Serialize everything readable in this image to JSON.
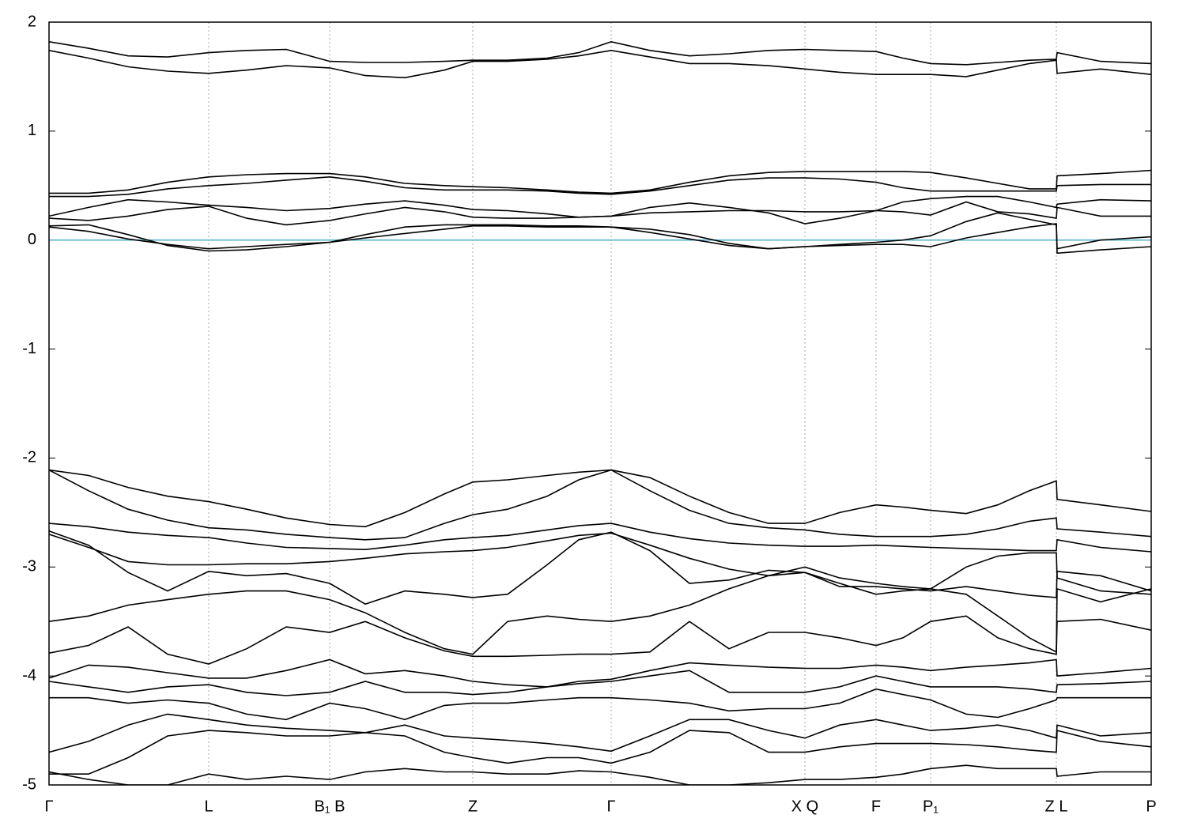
{
  "chart_data": {
    "type": "line",
    "x": [
      0,
      0.5,
      1.0,
      1.5,
      2.02,
      2.5,
      3.0,
      3.55,
      4.0,
      4.5,
      5.0,
      5.36,
      5.8,
      6.3,
      6.7,
      7.11,
      7.6,
      8.1,
      8.6,
      9.1,
      9.56,
      10.0,
      10.46,
      10.8,
      11.15,
      11.6,
      12.0,
      12.4,
      12.74,
      12.75,
      13.3,
      13.94
    ],
    "xlim": [
      0,
      13.94
    ],
    "xticks": [
      {
        "value": 0,
        "label": "Γ"
      },
      {
        "value": 2.02,
        "label": "L"
      },
      {
        "value": 3.55,
        "label": "B₁ B"
      },
      {
        "value": 5.36,
        "label": "Z"
      },
      {
        "value": 7.11,
        "label": "Γ"
      },
      {
        "value": 9.56,
        "label": "X Q"
      },
      {
        "value": 10.46,
        "label": "F"
      },
      {
        "value": 11.15,
        "label": "P₁"
      },
      {
        "value": 12.74,
        "label": "Z L"
      },
      {
        "value": 13.94,
        "label": "P"
      }
    ],
    "ylim": [
      -5,
      2
    ],
    "yticks": [
      -5,
      -4,
      -3,
      -2,
      -1,
      0,
      1,
      2
    ],
    "fermi_level": 0,
    "fermi_color": "#5ab4c8",
    "series": [
      {
        "color": "#000000",
        "values": [
          1.82,
          1.76,
          1.69,
          1.68,
          1.72,
          1.74,
          1.75,
          1.64,
          1.63,
          1.63,
          1.64,
          1.65,
          1.65,
          1.67,
          1.72,
          1.82,
          1.74,
          1.69,
          1.71,
          1.74,
          1.75,
          1.74,
          1.73,
          1.67,
          1.62,
          1.61,
          1.63,
          1.65,
          1.66,
          1.72,
          1.64,
          1.62
        ]
      },
      {
        "color": "#000000",
        "values": [
          1.74,
          1.67,
          1.59,
          1.55,
          1.53,
          1.56,
          1.6,
          1.58,
          1.51,
          1.49,
          1.56,
          1.64,
          1.64,
          1.66,
          1.69,
          1.74,
          1.68,
          1.62,
          1.62,
          1.6,
          1.57,
          1.54,
          1.52,
          1.52,
          1.52,
          1.5,
          1.56,
          1.62,
          1.65,
          1.53,
          1.57,
          1.52
        ]
      },
      {
        "color": "#000000",
        "values": [
          0.43,
          0.43,
          0.46,
          0.53,
          0.58,
          0.6,
          0.61,
          0.61,
          0.58,
          0.52,
          0.5,
          0.49,
          0.48,
          0.46,
          0.44,
          0.43,
          0.46,
          0.53,
          0.59,
          0.62,
          0.63,
          0.63,
          0.63,
          0.63,
          0.62,
          0.57,
          0.52,
          0.47,
          0.47,
          0.59,
          0.61,
          0.64
        ]
      },
      {
        "color": "#000000",
        "values": [
          0.4,
          0.4,
          0.42,
          0.47,
          0.5,
          0.52,
          0.55,
          0.58,
          0.54,
          0.48,
          0.46,
          0.46,
          0.46,
          0.45,
          0.43,
          0.42,
          0.45,
          0.5,
          0.55,
          0.57,
          0.57,
          0.56,
          0.53,
          0.48,
          0.45,
          0.45,
          0.45,
          0.45,
          0.45,
          0.5,
          0.51,
          0.51
        ]
      },
      {
        "color": "#000000",
        "values": [
          0.22,
          0.3,
          0.37,
          0.35,
          0.32,
          0.3,
          0.27,
          0.29,
          0.33,
          0.36,
          0.32,
          0.28,
          0.27,
          0.24,
          0.21,
          0.22,
          0.3,
          0.34,
          0.3,
          0.25,
          0.15,
          0.2,
          0.27,
          0.35,
          0.38,
          0.4,
          0.4,
          0.35,
          0.3,
          0.33,
          0.37,
          0.36
        ]
      },
      {
        "color": "#000000",
        "values": [
          0.2,
          0.18,
          0.22,
          0.28,
          0.31,
          0.2,
          0.14,
          0.18,
          0.24,
          0.3,
          0.26,
          0.21,
          0.2,
          0.2,
          0.21,
          0.22,
          0.25,
          0.26,
          0.27,
          0.27,
          0.26,
          0.26,
          0.27,
          0.26,
          0.23,
          0.35,
          0.26,
          0.24,
          0.2,
          0.3,
          0.22,
          0.22
        ]
      },
      {
        "color": "#000000",
        "values": [
          0.13,
          0.14,
          0.05,
          -0.05,
          -0.1,
          -0.09,
          -0.06,
          -0.02,
          0.05,
          0.12,
          0.14,
          0.14,
          0.14,
          0.13,
          0.13,
          0.12,
          0.1,
          0.05,
          -0.03,
          -0.08,
          -0.06,
          -0.05,
          -0.04,
          -0.04,
          -0.06,
          0.02,
          0.07,
          0.12,
          0.15,
          -0.12,
          -0.09,
          -0.06
        ]
      },
      {
        "color": "#000000",
        "values": [
          0.12,
          0.08,
          0.01,
          -0.04,
          -0.08,
          -0.06,
          -0.04,
          -0.02,
          0.02,
          0.06,
          0.1,
          0.13,
          0.13,
          0.12,
          0.12,
          0.12,
          0.07,
          0.01,
          -0.05,
          -0.08,
          -0.06,
          -0.04,
          -0.02,
          0.0,
          0.04,
          0.17,
          0.25,
          0.19,
          0.14,
          -0.08,
          0.0,
          0.03
        ]
      },
      {
        "color": "#000000",
        "values": [
          -2.11,
          -2.16,
          -2.27,
          -2.35,
          -2.4,
          -2.47,
          -2.55,
          -2.61,
          -2.63,
          -2.5,
          -2.33,
          -2.22,
          -2.2,
          -2.16,
          -2.13,
          -2.11,
          -2.18,
          -2.35,
          -2.5,
          -2.6,
          -2.6,
          -2.5,
          -2.43,
          -2.45,
          -2.48,
          -2.51,
          -2.43,
          -2.3,
          -2.21,
          -2.38,
          -2.43,
          -2.49
        ]
      },
      {
        "color": "#000000",
        "values": [
          -2.11,
          -2.3,
          -2.47,
          -2.57,
          -2.64,
          -2.66,
          -2.7,
          -2.73,
          -2.75,
          -2.73,
          -2.6,
          -2.52,
          -2.47,
          -2.35,
          -2.2,
          -2.11,
          -2.3,
          -2.48,
          -2.6,
          -2.64,
          -2.66,
          -2.7,
          -2.72,
          -2.72,
          -2.72,
          -2.7,
          -2.65,
          -2.58,
          -2.55,
          -2.65,
          -2.68,
          -2.72
        ]
      },
      {
        "color": "#000000",
        "values": [
          -2.6,
          -2.63,
          -2.68,
          -2.71,
          -2.73,
          -2.78,
          -2.82,
          -2.83,
          -2.84,
          -2.8,
          -2.75,
          -2.73,
          -2.71,
          -2.66,
          -2.62,
          -2.6,
          -2.68,
          -2.74,
          -2.78,
          -2.8,
          -2.81,
          -2.81,
          -2.8,
          -2.81,
          -2.82,
          -2.83,
          -2.84,
          -2.85,
          -2.85,
          -2.75,
          -2.82,
          -2.86
        ]
      },
      {
        "color": "#000000",
        "values": [
          -2.67,
          -2.8,
          -3.05,
          -3.22,
          -3.04,
          -3.08,
          -3.06,
          -3.15,
          -3.34,
          -3.22,
          -3.25,
          -3.28,
          -3.25,
          -2.98,
          -2.75,
          -2.68,
          -2.85,
          -3.15,
          -3.12,
          -3.03,
          -3.05,
          -3.18,
          -3.18,
          -3.2,
          -3.22,
          -3.18,
          -3.22,
          -3.26,
          -3.28,
          -3.04,
          -3.08,
          -3.22
        ]
      },
      {
        "color": "#000000",
        "values": [
          -2.7,
          -2.82,
          -2.95,
          -2.98,
          -2.98,
          -2.97,
          -2.97,
          -2.95,
          -2.92,
          -2.88,
          -2.86,
          -2.85,
          -2.82,
          -2.76,
          -2.71,
          -2.69,
          -2.8,
          -2.92,
          -3.02,
          -3.08,
          -3.0,
          -3.1,
          -3.15,
          -3.18,
          -3.2,
          -3.0,
          -2.9,
          -2.87,
          -2.87,
          -3.1,
          -3.22,
          -3.25
        ]
      },
      {
        "color": "#000000",
        "values": [
          -3.5,
          -3.45,
          -3.35,
          -3.3,
          -3.25,
          -3.22,
          -3.22,
          -3.3,
          -3.42,
          -3.6,
          -3.75,
          -3.8,
          -3.5,
          -3.45,
          -3.48,
          -3.5,
          -3.45,
          -3.35,
          -3.2,
          -3.08,
          -3.05,
          -3.15,
          -3.25,
          -3.22,
          -3.2,
          -3.25,
          -3.45,
          -3.65,
          -3.78,
          -3.2,
          -3.32,
          -3.2
        ]
      },
      {
        "color": "#000000",
        "values": [
          -3.79,
          -3.72,
          -3.55,
          -3.8,
          -3.89,
          -3.75,
          -3.55,
          -3.6,
          -3.5,
          -3.65,
          -3.77,
          -3.82,
          -3.82,
          -3.81,
          -3.8,
          -3.8,
          -3.78,
          -3.5,
          -3.75,
          -3.6,
          -3.6,
          -3.65,
          -3.72,
          -3.65,
          -3.5,
          -3.45,
          -3.65,
          -3.75,
          -3.8,
          -3.5,
          -3.48,
          -3.58
        ]
      },
      {
        "color": "#000000",
        "values": [
          -4.02,
          -3.9,
          -3.92,
          -3.97,
          -4.02,
          -4.02,
          -3.95,
          -3.85,
          -3.98,
          -3.95,
          -4.0,
          -4.05,
          -4.08,
          -4.1,
          -4.05,
          -4.03,
          -3.95,
          -3.88,
          -3.9,
          -3.92,
          -3.93,
          -3.93,
          -3.9,
          -3.92,
          -3.95,
          -3.92,
          -3.9,
          -3.88,
          -3.85,
          -4.0,
          -3.97,
          -3.93
        ]
      },
      {
        "color": "#000000",
        "values": [
          -4.05,
          -4.1,
          -4.15,
          -4.1,
          -4.08,
          -4.15,
          -4.18,
          -4.15,
          -4.05,
          -4.15,
          -4.15,
          -4.17,
          -4.15,
          -4.1,
          -4.07,
          -4.05,
          -4.0,
          -3.95,
          -4.15,
          -4.15,
          -4.15,
          -4.1,
          -4.0,
          -4.05,
          -4.1,
          -4.1,
          -4.1,
          -4.12,
          -4.15,
          -4.08,
          -4.07,
          -4.05
        ]
      },
      {
        "color": "#000000",
        "values": [
          -4.2,
          -4.2,
          -4.25,
          -4.22,
          -4.25,
          -4.35,
          -4.4,
          -4.25,
          -4.3,
          -4.4,
          -4.27,
          -4.25,
          -4.25,
          -4.22,
          -4.2,
          -4.2,
          -4.22,
          -4.25,
          -4.32,
          -4.3,
          -4.3,
          -4.25,
          -4.12,
          -4.17,
          -4.22,
          -4.35,
          -4.38,
          -4.3,
          -4.22,
          -4.2,
          -4.2,
          -4.2
        ]
      },
      {
        "color": "#000000",
        "values": [
          -4.7,
          -4.6,
          -4.45,
          -4.35,
          -4.4,
          -4.45,
          -4.48,
          -4.5,
          -4.52,
          -4.45,
          -4.55,
          -4.57,
          -4.59,
          -4.62,
          -4.65,
          -4.69,
          -4.55,
          -4.4,
          -4.4,
          -4.5,
          -4.57,
          -4.45,
          -4.4,
          -4.45,
          -4.5,
          -4.48,
          -4.45,
          -4.5,
          -4.57,
          -4.45,
          -4.55,
          -4.52
        ]
      },
      {
        "color": "#000000",
        "values": [
          -4.9,
          -4.9,
          -4.75,
          -4.55,
          -4.5,
          -4.52,
          -4.55,
          -4.55,
          -4.52,
          -4.55,
          -4.7,
          -4.75,
          -4.8,
          -4.75,
          -4.75,
          -4.8,
          -4.7,
          -4.5,
          -4.52,
          -4.7,
          -4.7,
          -4.65,
          -4.62,
          -4.62,
          -4.62,
          -4.63,
          -4.65,
          -4.68,
          -4.7,
          -4.5,
          -4.6,
          -4.65
        ]
      },
      {
        "color": "#000000",
        "values": [
          -4.88,
          -4.95,
          -5.0,
          -5.0,
          -4.9,
          -4.95,
          -4.92,
          -4.95,
          -4.88,
          -4.85,
          -4.88,
          -4.88,
          -4.9,
          -4.9,
          -4.87,
          -4.88,
          -4.93,
          -5.0,
          -5.0,
          -4.98,
          -4.95,
          -4.95,
          -4.93,
          -4.9,
          -4.85,
          -4.82,
          -4.85,
          -4.85,
          -4.85,
          -4.92,
          -4.88,
          -4.88
        ]
      }
    ]
  }
}
